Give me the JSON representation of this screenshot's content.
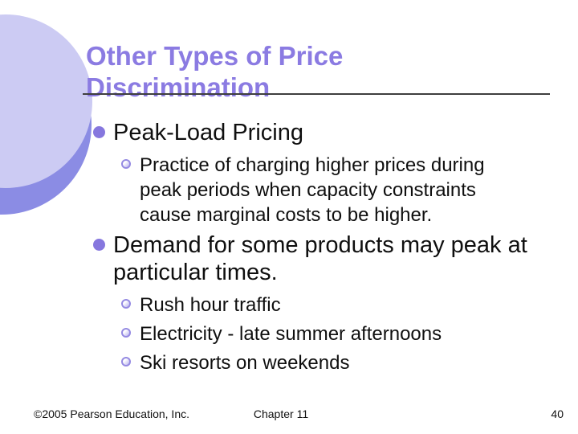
{
  "slide": {
    "title": "Other Types of Price Discrimination",
    "sections": [
      {
        "heading": "Peak-Load Pricing",
        "subitems": [
          "Practice of charging higher prices during peak periods when capacity constraints cause marginal costs to be higher."
        ]
      },
      {
        "heading": "Demand for some products may peak at particular times.",
        "subitems": [
          "Rush hour traffic",
          "Electricity - late summer afternoons",
          "Ski resorts on weekends"
        ]
      }
    ],
    "footer": {
      "copyright": "©2005 Pearson Education, Inc.",
      "chapter": "Chapter 11",
      "page_number": "40"
    },
    "colors": {
      "title": "#8b7be2",
      "bullet_dot": "#8677de",
      "bullet_ring": "#958ae2",
      "circle_light": "#cccbf3",
      "circle_dark": "#8b8ce4",
      "body_text": "#0f0f0f",
      "rule": "#3f3f3f"
    }
  }
}
